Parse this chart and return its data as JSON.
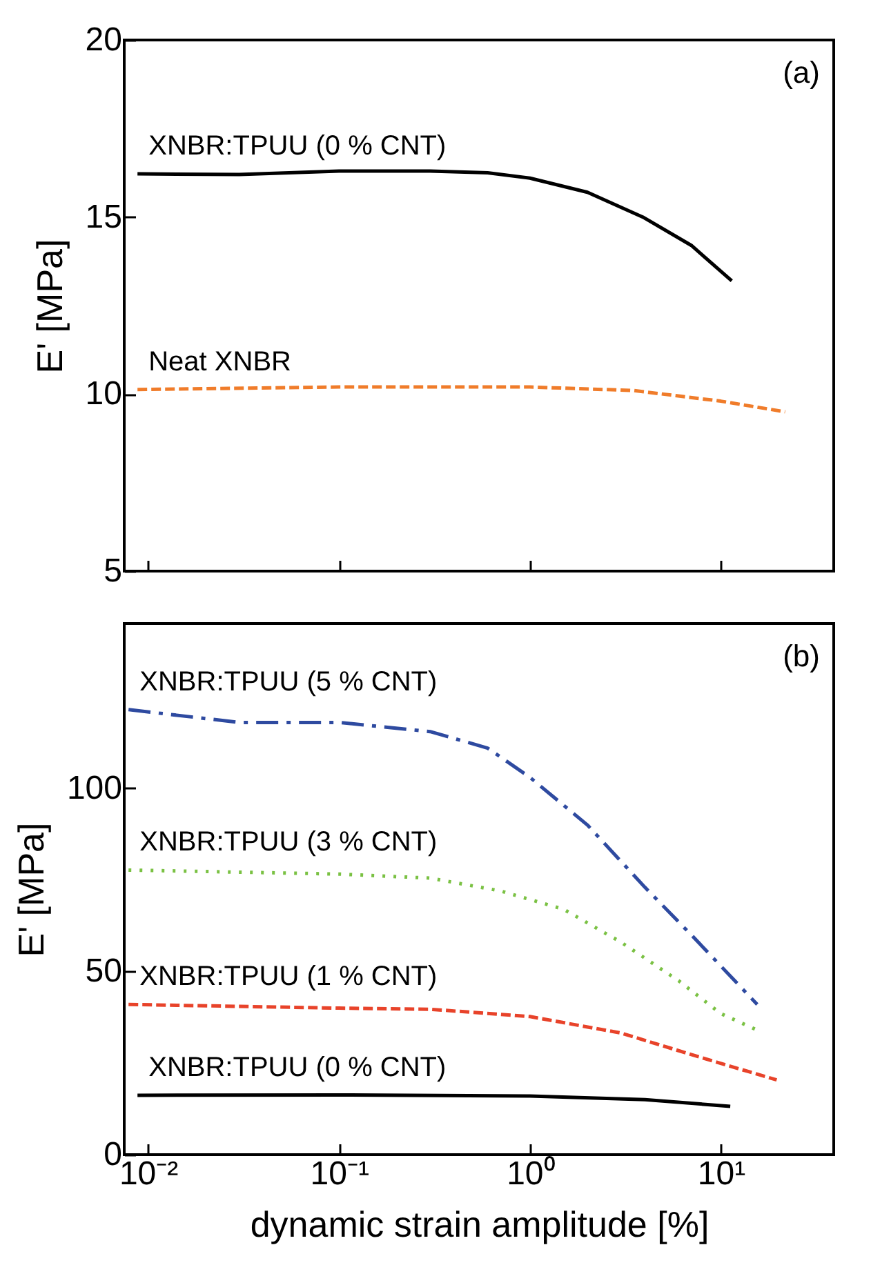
{
  "chart_data": [
    {
      "type": "line",
      "ylabel": "E' [MPa]",
      "annotations": [
        "(a)"
      ],
      "log": "x",
      "xlim": [
        0.0075,
        39
      ],
      "xticks": [
        {
          "value": 0.01,
          "label": null
        },
        {
          "value": 0.1,
          "label": null
        },
        {
          "value": 1,
          "label": null
        },
        {
          "value": 10,
          "label": null
        }
      ],
      "ylim": [
        5,
        20
      ],
      "yticks": [
        5,
        10,
        15,
        20
      ],
      "tick_labels": "y",
      "grid": false,
      "series": [
        {
          "name": "XNBR:TPUU (0 % CNT)",
          "color": "#000000",
          "line_style": "solid",
          "x": [
            0.0088,
            0.03,
            0.1,
            0.3,
            0.6,
            1,
            2,
            3.9,
            7,
            11.4
          ],
          "values": [
            16.22,
            16.2,
            16.3,
            16.3,
            16.25,
            16.1,
            15.7,
            15.0,
            14.2,
            13.2
          ]
        },
        {
          "name": "Neat XNBR",
          "color": "#f07c2a",
          "line_style": "dashed",
          "x": [
            0.0088,
            0.1,
            1,
            3.5,
            10,
            21.7
          ],
          "values": [
            10.13,
            10.2,
            10.2,
            10.1,
            9.8,
            9.5
          ]
        }
      ]
    },
    {
      "type": "line",
      "xlabel": "dynamic strain amplitude [%]",
      "ylabel": "E' [MPa]",
      "annotations": [
        "(b)"
      ],
      "log": "x",
      "xlim": [
        0.0075,
        39
      ],
      "xticks": [
        {
          "value": 0.01,
          "label": "10⁻²"
        },
        {
          "value": 0.1,
          "label": "10⁻¹"
        },
        {
          "value": 1,
          "label": "10⁰"
        },
        {
          "value": 10,
          "label": "10¹"
        }
      ],
      "ylim": [
        0,
        145
      ],
      "yticks": [
        0,
        50,
        100
      ],
      "grid": false,
      "series": [
        {
          "name": "XNBR:TPUU (5 % CNT)",
          "color": "#2e4aa0",
          "line_style": "dashdot",
          "x": [
            0.0079,
            0.03,
            0.1,
            0.3,
            0.6,
            1,
            2,
            4,
            7,
            15.5
          ],
          "values": [
            121.5,
            118,
            118,
            115.5,
            111,
            103,
            90,
            73,
            60,
            41
          ]
        },
        {
          "name": "XNBR:TPUU (3 % CNT)",
          "color": "#7ac143",
          "line_style": "dotted",
          "x": [
            0.0079,
            0.1,
            0.3,
            0.7,
            1.5,
            3,
            6,
            10,
            15.5
          ],
          "values": [
            77.7,
            76.6,
            75.5,
            72,
            67,
            58,
            47.5,
            38.5,
            34
          ]
        },
        {
          "name": "XNBR:TPUU (1 % CNT)",
          "color": "#e8432a",
          "line_style": "dashed",
          "x": [
            0.0079,
            0.1,
            0.3,
            1,
            3,
            8,
            19.6
          ],
          "values": [
            41,
            40,
            39.7,
            37.7,
            33.2,
            26.4,
            20.4
          ]
        },
        {
          "name": "XNBR:TPUU (0 % CNT)",
          "color": "#000000",
          "line_style": "solid",
          "x": [
            0.0088,
            0.1,
            1,
            4,
            11.2
          ],
          "values": [
            16.2,
            16.3,
            16,
            15,
            13.2
          ]
        }
      ]
    }
  ]
}
